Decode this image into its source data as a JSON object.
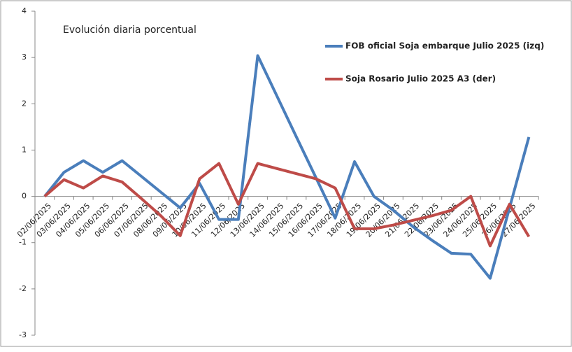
{
  "chart_data": {
    "type": "line",
    "title": "Evolución diaria porcentual",
    "categories": [
      "02/06/2025",
      "03/06/2025",
      "04/06/2025",
      "05/06/2025",
      "06/06/2025",
      "07/06/2025",
      "08/06/2025",
      "09/06/2025",
      "10/06/2025",
      "11/06/2025",
      "12/06/2025",
      "13/06/2025",
      "14/06/2025",
      "15/06/2025",
      "16/06/2025",
      "17/06/2025",
      "18/06/2025",
      "19/06/2025",
      "20/06/2025",
      "21/06/2025",
      "22/06/2025",
      "23/06/2025",
      "24/06/2025",
      "25/06/2025",
      "26/06/2025",
      "27/06/2025"
    ],
    "series": [
      {
        "name": "FOB oficial Soja embarque Julio 2025 (izq)",
        "color": "#4a7ebb",
        "values": [
          0,
          0.52,
          0.77,
          0.52,
          0.77,
          0.43,
          0.09,
          -0.25,
          0.28,
          -0.5,
          -0.5,
          3.04,
          2.16,
          1.28,
          0.41,
          -0.47,
          0.75,
          0,
          -0.3,
          -0.65,
          -0.95,
          -1.23,
          -1.25,
          -1.77,
          -0.25,
          1.28
        ]
      },
      {
        "name": "Soja Rosario Julio 2025 A3 (der)",
        "color": "#be4b48",
        "values": [
          0,
          0.36,
          0.18,
          0.44,
          0.31,
          -0.05,
          -0.42,
          -0.85,
          0.38,
          0.71,
          -0.17,
          0.71,
          0.6,
          0.49,
          0.38,
          0.18,
          -0.7,
          -0.7,
          -0.62,
          -0.52,
          -0.42,
          -0.3,
          0,
          -1.07,
          -0.17,
          -0.87
        ]
      }
    ],
    "ylim": [
      -3,
      4
    ],
    "yticks": [
      -3,
      -2,
      -1,
      0,
      1,
      2,
      3,
      4
    ]
  }
}
